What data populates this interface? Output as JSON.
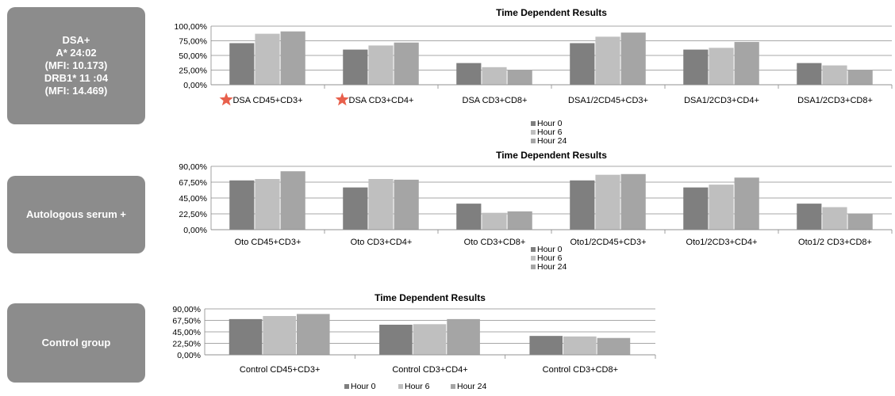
{
  "boxes": [
    {
      "lines": [
        "DSA+",
        "A* 24:02",
        "(MFI: 10.173)",
        "DRB1* 11 :04",
        "(MFI: 14.469)"
      ]
    },
    {
      "lines": [
        "Autologous serum +"
      ]
    },
    {
      "lines": [
        "Control group"
      ]
    }
  ],
  "colors": {
    "hour0": "#7f7f7f",
    "hour6": "#bfbfbf",
    "hour24": "#a5a5a5",
    "star": "#e8604c",
    "box": "#8c8c8c"
  },
  "chart_data": [
    {
      "type": "bar",
      "title": "Time Dependent  Results",
      "categories": [
        "DSA CD45+CD3+",
        "DSA CD3+CD4+",
        "DSA CD3+CD8+",
        "DSA1/2CD45+CD3+",
        "DSA1/2CD3+CD4+",
        "DSA1/2CD3+CD8+"
      ],
      "starred_categories": [
        0,
        1
      ],
      "yticks": [
        "0,00%",
        "25,00%",
        "50,00%",
        "75,00%",
        "100,00%"
      ],
      "ylim": [
        0,
        100
      ],
      "series": [
        {
          "name": "Hour 0",
          "values": [
            71,
            60,
            37,
            71,
            60,
            37
          ]
        },
        {
          "name": "Hour 6",
          "values": [
            87,
            67,
            30,
            82,
            63,
            33
          ]
        },
        {
          "name": "Hour 24",
          "values": [
            91,
            72,
            25,
            89,
            73,
            25
          ]
        }
      ],
      "legend": "bottom-center, vertical",
      "grid": true
    },
    {
      "type": "bar",
      "title": "Time Dependent  Results",
      "categories": [
        "Oto CD45+CD3+",
        "Oto CD3+CD4+",
        "Oto CD3+CD8+",
        "Oto1/2CD45+CD3+",
        "Oto1/2CD3+CD4+",
        "Oto1/2 CD3+CD8+"
      ],
      "yticks": [
        "0,00%",
        "22,50%",
        "45,00%",
        "67,50%",
        "90,00%"
      ],
      "ylim": [
        0,
        90
      ],
      "series": [
        {
          "name": "Hour 0",
          "values": [
            70,
            60,
            37,
            70,
            60,
            37
          ]
        },
        {
          "name": "Hour 6",
          "values": [
            72,
            72,
            24,
            78,
            64,
            32
          ]
        },
        {
          "name": "Hour 24",
          "values": [
            83,
            71,
            26,
            79,
            74,
            23
          ]
        }
      ],
      "legend": "bottom-center, vertical",
      "grid": true
    },
    {
      "type": "bar",
      "title": "Time Dependent  Results",
      "categories": [
        "Control CD45+CD3+",
        "Control CD3+CD4+",
        "Control CD3+CD8+"
      ],
      "yticks": [
        "0,00%",
        "22,50%",
        "45,00%",
        "67,50%",
        "90,00%"
      ],
      "ylim": [
        0,
        90
      ],
      "series": [
        {
          "name": "Hour 0",
          "values": [
            70,
            59,
            37
          ]
        },
        {
          "name": "Hour 6",
          "values": [
            76,
            60,
            36
          ]
        },
        {
          "name": "Hour 24",
          "values": [
            80,
            70,
            33
          ]
        }
      ],
      "legend": "bottom-center, horizontal",
      "grid": true
    }
  ]
}
